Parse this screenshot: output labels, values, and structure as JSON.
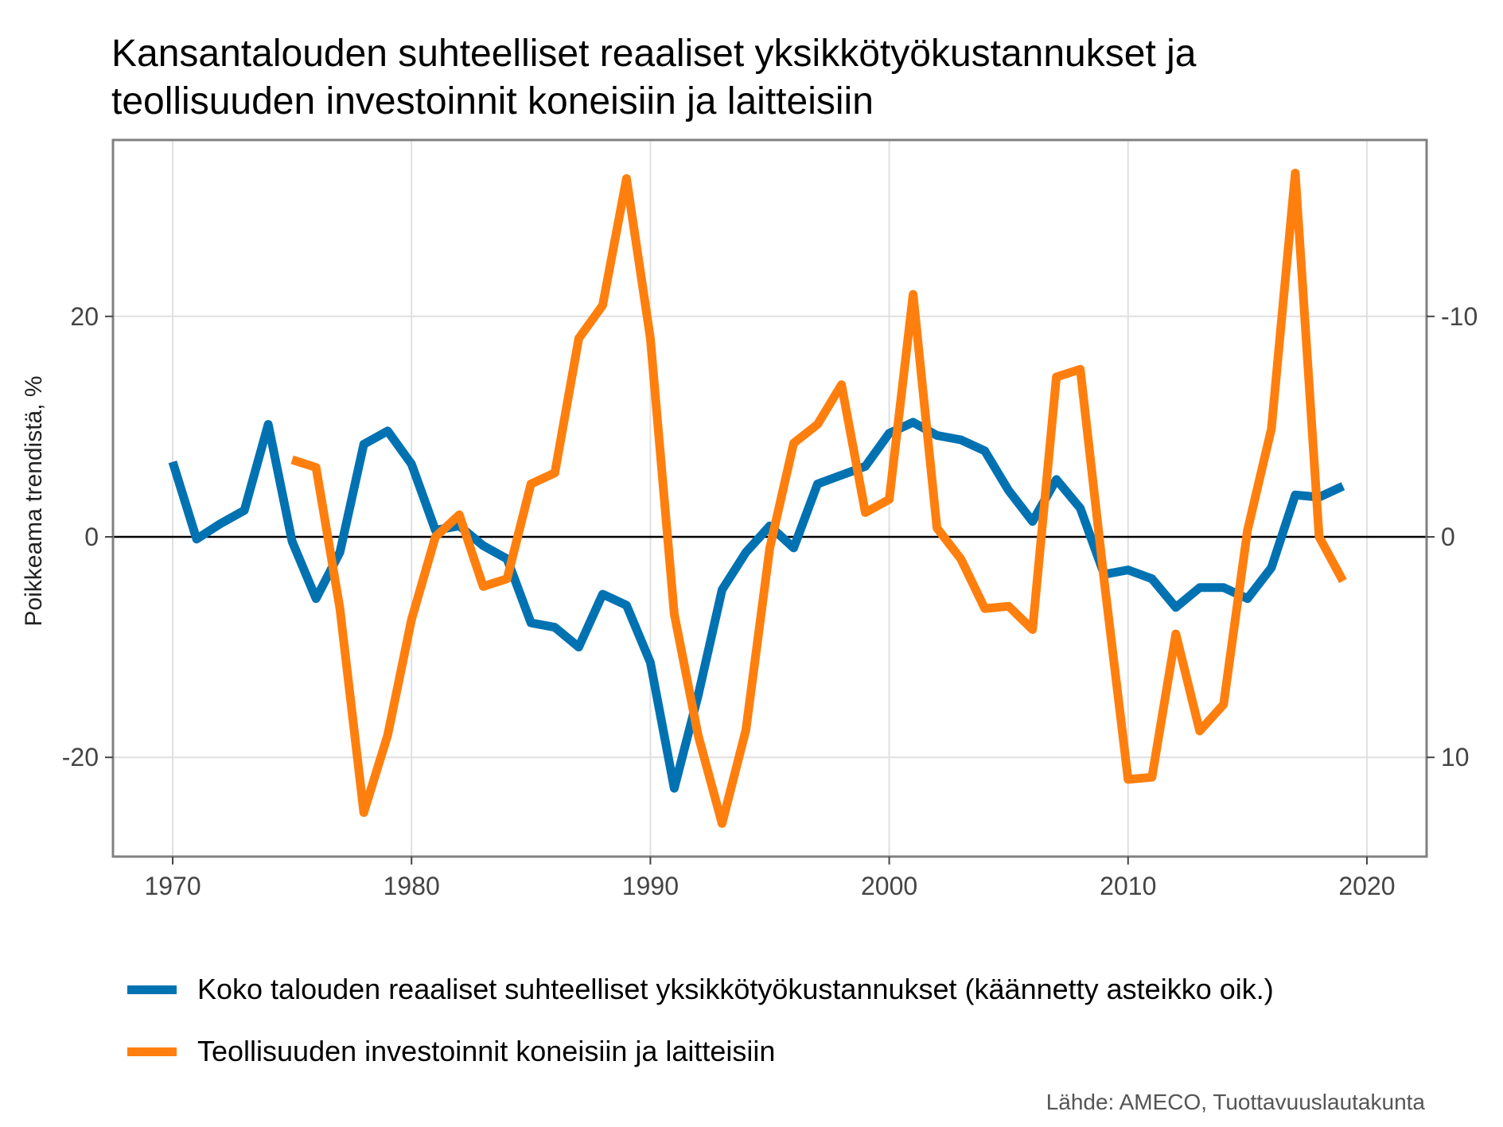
{
  "title_lines": [
    "Kansantalouden suhteelliset reaaliset yksikkötyökustannukset ja",
    "teollisuuden investoinnit koneisiin ja laitteisiin"
  ],
  "source": "Lähde: AMECO, Tuottavuuslautakunta",
  "colors": {
    "blue": "#0072B2",
    "orange": "#FF7F0E",
    "grid": "#e0e0e0",
    "frame": "#808080",
    "zero": "#000000"
  },
  "chart_data": {
    "type": "line",
    "ylabel": "Poikkeama trendistä, %",
    "xlim": [
      1967.5,
      2022.5
    ],
    "ylim": [
      -29,
      36
    ],
    "y2_inverted": true,
    "y2_scale_note": "right axis value = -left / 2",
    "x_ticks": [
      1970,
      1980,
      1990,
      2000,
      2010,
      2020
    ],
    "y_ticks": [
      -20,
      0,
      20
    ],
    "y_tick_labels": [
      "-20",
      "0",
      "20"
    ],
    "y2_tick_labels": [
      "10",
      "0",
      "-10"
    ],
    "grid": true,
    "legend_position": "bottom",
    "series": [
      {
        "name": "Koko talouden reaaliset suhteelliset yksikkötyökustannukset (käännetty asteikko oik.)",
        "axis": "right-inverted",
        "color": "#0072B2",
        "x": [
          1970,
          1971,
          1972,
          1973,
          1974,
          1975,
          1976,
          1977,
          1978,
          1979,
          1980,
          1981,
          1982,
          1983,
          1984,
          1985,
          1986,
          1987,
          1988,
          1989,
          1990,
          1991,
          1992,
          1993,
          1994,
          1995,
          1996,
          1997,
          1998,
          1999,
          2000,
          2001,
          2002,
          2003,
          2004,
          2005,
          2006,
          2007,
          2008,
          2009,
          2010,
          2011,
          2012,
          2013,
          2014,
          2015,
          2016,
          2017,
          2018,
          2019
        ],
        "values": [
          -3.4,
          0.1,
          -0.6,
          -1.2,
          -5.1,
          0.2,
          2.8,
          0.7,
          -4.2,
          -4.8,
          -3.3,
          -0.3,
          -0.5,
          0.4,
          1.0,
          3.9,
          4.1,
          5.0,
          2.6,
          3.1,
          5.7,
          11.4,
          7.2,
          2.4,
          0.7,
          -0.5,
          0.5,
          -2.4,
          -2.8,
          -3.2,
          -4.7,
          -5.2,
          -4.6,
          -4.4,
          -3.9,
          -2.1,
          -0.7,
          -2.6,
          -1.3,
          1.7,
          1.5,
          1.9,
          3.2,
          2.3,
          2.3,
          2.8,
          1.4,
          -1.9,
          -1.8,
          -2.3
        ]
      },
      {
        "name": "Teollisuuden investoinnit koneisiin ja laitteisiin",
        "axis": "left",
        "color": "#FF7F0E",
        "x": [
          1975,
          1976,
          1977,
          1978,
          1979,
          1980,
          1981,
          1982,
          1983,
          1984,
          1985,
          1986,
          1987,
          1988,
          1989,
          1990,
          1991,
          1992,
          1993,
          1994,
          1995,
          1996,
          1997,
          1998,
          1999,
          2000,
          2001,
          2002,
          2003,
          2004,
          2005,
          2006,
          2007,
          2008,
          2009,
          2010,
          2011,
          2012,
          2013,
          2014,
          2015,
          2016,
          2017,
          2018,
          2019
        ],
        "values": [
          7,
          6.3,
          -6.5,
          -25,
          -18,
          -7.5,
          0,
          2,
          -4.5,
          -3.8,
          4.8,
          5.8,
          18,
          21,
          32.5,
          18,
          -7,
          -18,
          -26,
          -17.5,
          -1,
          8.5,
          10.2,
          13.8,
          2.2,
          3.4,
          22,
          0.8,
          -2,
          -6.5,
          -6.3,
          -8.4,
          14.5,
          15.2,
          -4,
          -22,
          -21.8,
          -8.8,
          -17.6,
          -15.2,
          0.6,
          9.8,
          33,
          0,
          -4
        ]
      }
    ]
  }
}
